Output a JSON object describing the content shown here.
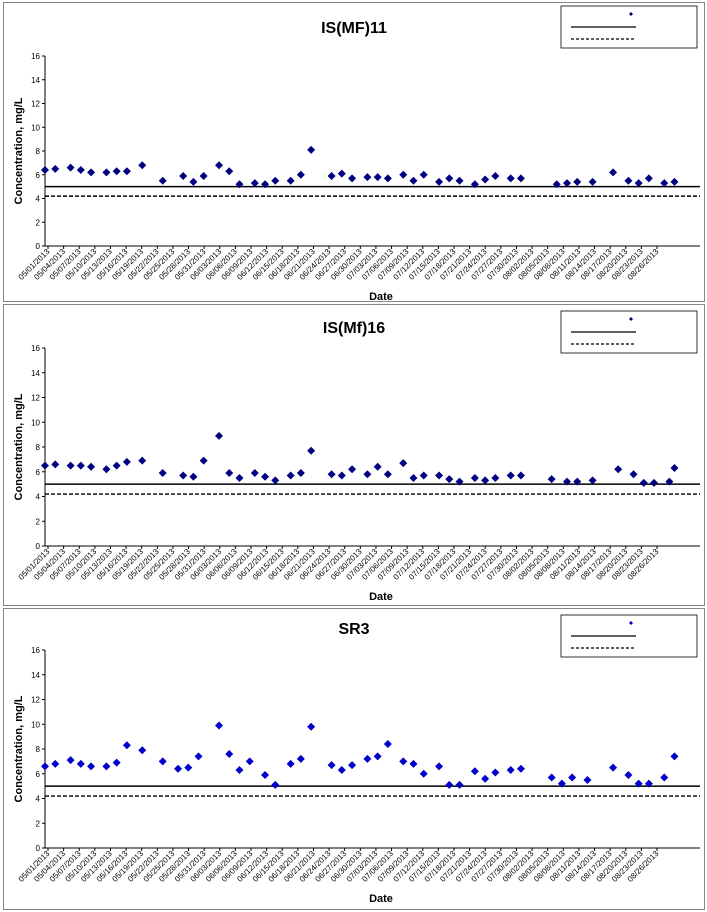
{
  "chart_data": [
    {
      "type": "scatter",
      "title": "IS(MF)11",
      "xlabel": "Date",
      "ylabel": "Concentration, mg/L",
      "ylim": [
        0,
        16
      ],
      "yticks": [
        0,
        2,
        4,
        6,
        8,
        10,
        12,
        14,
        16
      ],
      "xlim": [
        "05/01/2013",
        "08/28/2013"
      ],
      "xtick_labels": [
        "05/01/2013",
        "05/04/2013",
        "05/07/2013",
        "05/10/2013",
        "05/13/2013",
        "05/16/2013",
        "05/19/2013",
        "05/22/2013",
        "05/25/2013",
        "05/28/2013",
        "05/31/2013",
        "06/03/2013",
        "06/06/2013",
        "06/09/2013",
        "06/12/2013",
        "06/15/2013",
        "06/18/2013",
        "06/21/2013",
        "06/24/2013",
        "06/27/2013",
        "06/30/2013",
        "07/03/2013",
        "07/06/2013",
        "07/09/2013",
        "07/12/2013",
        "07/15/2013",
        "07/18/2013",
        "07/21/2013",
        "07/24/2013",
        "07/27/2013",
        "07/30/2013",
        "08/02/2013",
        "08/05/2013",
        "08/08/2013",
        "08/11/2013",
        "08/14/2013",
        "08/17/2013",
        "08/20/2013",
        "08/23/2013",
        "08/26/2013"
      ],
      "grid": false,
      "legend_position": "top-right",
      "marker_color": "#000080",
      "reference_lines": [
        {
          "value": 5.0,
          "style": "solid"
        },
        {
          "value": 4.2,
          "style": "dashed"
        }
      ],
      "series": [
        {
          "points": [
            [
              "05/01/2013",
              6.4
            ],
            [
              "05/03/2013",
              6.5
            ],
            [
              "05/06/2013",
              6.6
            ],
            [
              "05/08/2013",
              6.4
            ],
            [
              "05/10/2013",
              6.2
            ],
            [
              "05/13/2013",
              6.2
            ],
            [
              "05/15/2013",
              6.3
            ],
            [
              "05/17/2013",
              6.3
            ],
            [
              "05/20/2013",
              6.8
            ],
            [
              "05/24/2013",
              5.5
            ],
            [
              "05/28/2013",
              5.9
            ],
            [
              "05/30/2013",
              5.4
            ],
            [
              "06/01/2013",
              5.9
            ],
            [
              "06/04/2013",
              6.8
            ],
            [
              "06/06/2013",
              6.3
            ],
            [
              "06/08/2013",
              5.2
            ],
            [
              "06/11/2013",
              5.3
            ],
            [
              "06/13/2013",
              5.2
            ],
            [
              "06/15/2013",
              5.5
            ],
            [
              "06/18/2013",
              5.5
            ],
            [
              "06/20/2013",
              6.0
            ],
            [
              "06/22/2013",
              8.1
            ],
            [
              "06/26/2013",
              5.9
            ],
            [
              "06/28/2013",
              6.1
            ],
            [
              "06/30/2013",
              5.7
            ],
            [
              "07/03/2013",
              5.8
            ],
            [
              "07/05/2013",
              5.8
            ],
            [
              "07/07/2013",
              5.7
            ],
            [
              "07/10/2013",
              6.0
            ],
            [
              "07/12/2013",
              5.5
            ],
            [
              "07/14/2013",
              6.0
            ],
            [
              "07/17/2013",
              5.4
            ],
            [
              "07/19/2013",
              5.7
            ],
            [
              "07/21/2013",
              5.5
            ],
            [
              "07/24/2013",
              5.2
            ],
            [
              "07/26/2013",
              5.6
            ],
            [
              "07/28/2013",
              5.9
            ],
            [
              "07/31/2013",
              5.7
            ],
            [
              "08/02/2013",
              5.7
            ],
            [
              "08/09/2013",
              5.2
            ],
            [
              "08/11/2013",
              5.3
            ],
            [
              "08/13/2013",
              5.4
            ],
            [
              "08/16/2013",
              5.4
            ],
            [
              "08/20/2013",
              6.2
            ],
            [
              "08/23/2013",
              5.5
            ],
            [
              "08/25/2013",
              5.3
            ],
            [
              "08/27/2013",
              5.7
            ],
            [
              "08/30/2013",
              5.3
            ],
            [
              "09/01/2013",
              5.4
            ]
          ]
        }
      ]
    },
    {
      "type": "scatter",
      "title": "IS(Mf)16",
      "xlabel": "Date",
      "ylabel": "Concentration, mg/L",
      "ylim": [
        0,
        16
      ],
      "yticks": [
        0,
        2,
        4,
        6,
        8,
        10,
        12,
        14,
        16
      ],
      "xlim": [
        "05/01/2013",
        "08/28/2013"
      ],
      "xtick_labels": [
        "05/01/2013",
        "05/04/2013",
        "05/07/2013",
        "05/10/2013",
        "05/13/2013",
        "05/16/2013",
        "05/19/2013",
        "05/22/2013",
        "05/25/2013",
        "05/28/2013",
        "05/31/2013",
        "06/03/2013",
        "06/06/2013",
        "06/09/2013",
        "06/12/2013",
        "06/15/2013",
        "06/18/2013",
        "06/21/2013",
        "06/24/2013",
        "06/27/2013",
        "06/30/2013",
        "07/03/2013",
        "07/06/2013",
        "07/09/2013",
        "07/12/2013",
        "07/15/2013",
        "07/18/2013",
        "07/21/2013",
        "07/24/2013",
        "07/27/2013",
        "07/30/2013",
        "08/02/2013",
        "08/05/2013",
        "08/08/2013",
        "08/11/2013",
        "08/14/2013",
        "08/17/2013",
        "08/20/2013",
        "08/23/2013",
        "08/26/2013"
      ],
      "grid": false,
      "legend_position": "top-right",
      "marker_color": "#000080",
      "reference_lines": [
        {
          "value": 5.0,
          "style": "solid"
        },
        {
          "value": 4.2,
          "style": "dashed"
        }
      ],
      "series": [
        {
          "points": [
            [
              "05/01/2013",
              6.5
            ],
            [
              "05/03/2013",
              6.6
            ],
            [
              "05/06/2013",
              6.5
            ],
            [
              "05/08/2013",
              6.5
            ],
            [
              "05/10/2013",
              6.4
            ],
            [
              "05/13/2013",
              6.2
            ],
            [
              "05/15/2013",
              6.5
            ],
            [
              "05/17/2013",
              6.8
            ],
            [
              "05/20/2013",
              6.9
            ],
            [
              "05/24/2013",
              5.9
            ],
            [
              "05/28/2013",
              5.7
            ],
            [
              "05/30/2013",
              5.6
            ],
            [
              "06/01/2013",
              6.9
            ],
            [
              "06/04/2013",
              8.9
            ],
            [
              "06/06/2013",
              5.9
            ],
            [
              "06/08/2013",
              5.5
            ],
            [
              "06/11/2013",
              5.9
            ],
            [
              "06/13/2013",
              5.6
            ],
            [
              "06/15/2013",
              5.3
            ],
            [
              "06/18/2013",
              5.7
            ],
            [
              "06/20/2013",
              5.9
            ],
            [
              "06/22/2013",
              7.7
            ],
            [
              "06/26/2013",
              5.8
            ],
            [
              "06/28/2013",
              5.7
            ],
            [
              "06/30/2013",
              6.2
            ],
            [
              "07/03/2013",
              5.8
            ],
            [
              "07/05/2013",
              6.4
            ],
            [
              "07/07/2013",
              5.8
            ],
            [
              "07/10/2013",
              6.7
            ],
            [
              "07/12/2013",
              5.5
            ],
            [
              "07/14/2013",
              5.7
            ],
            [
              "07/17/2013",
              5.7
            ],
            [
              "07/19/2013",
              5.4
            ],
            [
              "07/21/2013",
              5.2
            ],
            [
              "07/24/2013",
              5.5
            ],
            [
              "07/26/2013",
              5.3
            ],
            [
              "07/28/2013",
              5.5
            ],
            [
              "07/31/2013",
              5.7
            ],
            [
              "08/02/2013",
              5.7
            ],
            [
              "08/08/2013",
              5.4
            ],
            [
              "08/11/2013",
              5.2
            ],
            [
              "08/13/2013",
              5.2
            ],
            [
              "08/16/2013",
              5.3
            ],
            [
              "08/21/2013",
              6.2
            ],
            [
              "08/24/2013",
              5.8
            ],
            [
              "08/26/2013",
              5.1
            ],
            [
              "08/28/2013",
              5.1
            ],
            [
              "08/31/2013",
              5.2
            ],
            [
              "09/01/2013",
              6.3
            ]
          ]
        }
      ]
    },
    {
      "type": "scatter",
      "title": "SR3",
      "xlabel": "Date",
      "ylabel": "Concentration, mg/L",
      "ylim": [
        0,
        16
      ],
      "yticks": [
        0,
        2,
        4,
        6,
        8,
        10,
        12,
        14,
        16
      ],
      "xlim": [
        "05/01/2013",
        "08/28/2013"
      ],
      "xtick_labels": [
        "05/01/2013",
        "05/04/2013",
        "05/07/2013",
        "05/10/2013",
        "05/13/2013",
        "05/16/2013",
        "05/19/2013",
        "05/22/2013",
        "05/25/2013",
        "05/28/2013",
        "05/31/2013",
        "06/03/2013",
        "06/06/2013",
        "06/09/2013",
        "06/12/2013",
        "06/15/2013",
        "06/18/2013",
        "06/21/2013",
        "06/24/2013",
        "06/27/2013",
        "06/30/2013",
        "07/03/2013",
        "07/06/2013",
        "07/09/2013",
        "07/12/2013",
        "07/15/2013",
        "07/18/2013",
        "07/21/2013",
        "07/24/2013",
        "07/27/2013",
        "07/30/2013",
        "08/02/2013",
        "08/05/2013",
        "08/08/2013",
        "08/11/2013",
        "08/14/2013",
        "08/17/2013",
        "08/20/2013",
        "08/23/2013",
        "08/26/2013"
      ],
      "grid": false,
      "legend_position": "top-right",
      "marker_color": "#0000CC",
      "reference_lines": [
        {
          "value": 5.0,
          "style": "solid"
        },
        {
          "value": 4.2,
          "style": "dashed"
        }
      ],
      "series": [
        {
          "points": [
            [
              "05/01/2013",
              6.6
            ],
            [
              "05/03/2013",
              6.8
            ],
            [
              "05/06/2013",
              7.1
            ],
            [
              "05/08/2013",
              6.8
            ],
            [
              "05/10/2013",
              6.6
            ],
            [
              "05/13/2013",
              6.6
            ],
            [
              "05/15/2013",
              6.9
            ],
            [
              "05/17/2013",
              8.3
            ],
            [
              "05/20/2013",
              7.9
            ],
            [
              "05/24/2013",
              7.0
            ],
            [
              "05/27/2013",
              6.4
            ],
            [
              "05/29/2013",
              6.5
            ],
            [
              "05/31/2013",
              7.4
            ],
            [
              "06/04/2013",
              9.9
            ],
            [
              "06/06/2013",
              7.6
            ],
            [
              "06/08/2013",
              6.3
            ],
            [
              "06/10/2013",
              7.0
            ],
            [
              "06/13/2013",
              5.9
            ],
            [
              "06/15/2013",
              5.1
            ],
            [
              "06/18/2013",
              6.8
            ],
            [
              "06/20/2013",
              7.2
            ],
            [
              "06/22/2013",
              9.8
            ],
            [
              "06/26/2013",
              6.7
            ],
            [
              "06/28/2013",
              6.3
            ],
            [
              "06/30/2013",
              6.7
            ],
            [
              "07/03/2013",
              7.2
            ],
            [
              "07/05/2013",
              7.4
            ],
            [
              "07/07/2013",
              8.4
            ],
            [
              "07/10/2013",
              7.0
            ],
            [
              "07/12/2013",
              6.8
            ],
            [
              "07/14/2013",
              6.0
            ],
            [
              "07/17/2013",
              6.6
            ],
            [
              "07/19/2013",
              5.1
            ],
            [
              "07/21/2013",
              5.1
            ],
            [
              "07/24/2013",
              6.2
            ],
            [
              "07/26/2013",
              5.6
            ],
            [
              "07/28/2013",
              6.1
            ],
            [
              "07/31/2013",
              6.3
            ],
            [
              "08/02/2013",
              6.4
            ],
            [
              "08/08/2013",
              5.7
            ],
            [
              "08/10/2013",
              5.2
            ],
            [
              "08/12/2013",
              5.7
            ],
            [
              "08/15/2013",
              5.5
            ],
            [
              "08/20/2013",
              6.5
            ],
            [
              "08/23/2013",
              5.9
            ],
            [
              "08/25/2013",
              5.2
            ],
            [
              "08/27/2013",
              5.2
            ],
            [
              "08/30/2013",
              5.7
            ],
            [
              "09/01/2013",
              7.4
            ]
          ]
        }
      ]
    }
  ]
}
